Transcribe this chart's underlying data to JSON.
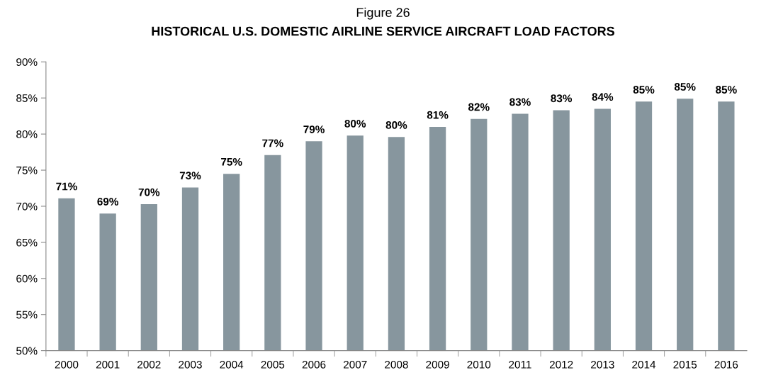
{
  "chart_data": {
    "type": "bar",
    "title": "Figure 26",
    "subtitle": "HISTORICAL U.S. DOMESTIC AIRLINE SERVICE AIRCRAFT LOAD FACTORS",
    "categories": [
      "2000",
      "2001",
      "2002",
      "2003",
      "2004",
      "2005",
      "2006",
      "2007",
      "2008",
      "2009",
      "2010",
      "2011",
      "2012",
      "2013",
      "2014",
      "2015",
      "2016"
    ],
    "values": [
      71.1,
      69.0,
      70.3,
      72.6,
      74.5,
      77.1,
      79.0,
      79.8,
      79.6,
      81.0,
      82.1,
      82.8,
      83.3,
      83.5,
      84.5,
      84.9,
      84.5
    ],
    "value_labels": [
      "71%",
      "69%",
      "70%",
      "73%",
      "75%",
      "77%",
      "79%",
      "80%",
      "80%",
      "81%",
      "82%",
      "83%",
      "83%",
      "84%",
      "85%",
      "85%",
      "85%"
    ],
    "color": "#87969e",
    "ylim": [
      50,
      90
    ],
    "yticks": [
      {
        "value": 50,
        "label": "50%"
      },
      {
        "value": 55,
        "label": "55%"
      },
      {
        "value": 60,
        "label": "60%"
      },
      {
        "value": 65,
        "label": "65%"
      },
      {
        "value": 70,
        "label": "70%"
      },
      {
        "value": 75,
        "label": "75%"
      },
      {
        "value": 80,
        "label": "80%"
      },
      {
        "value": 85,
        "label": "85%"
      },
      {
        "value": 90,
        "label": "90%"
      }
    ],
    "grid": false
  }
}
